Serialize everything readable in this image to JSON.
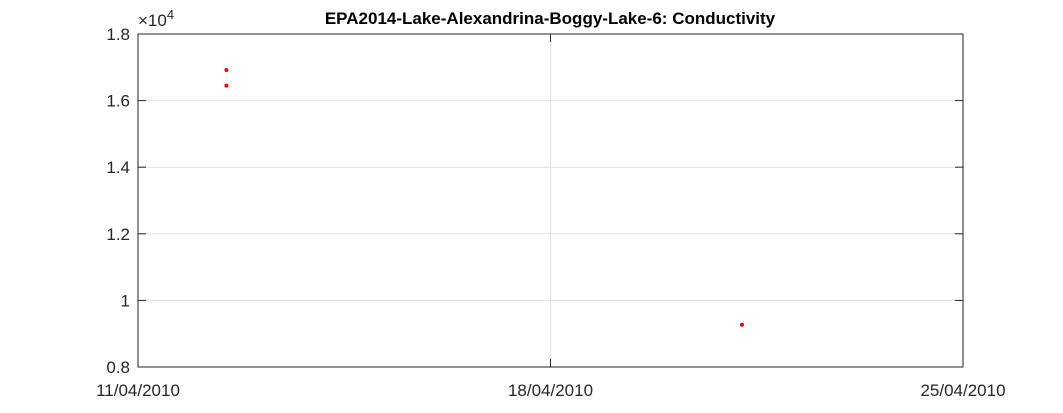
{
  "chart_data": {
    "type": "scatter",
    "title": "EPA2014-Lake-Alexandrina-Boggy-Lake-6: Conductivity",
    "xlabel": "",
    "ylabel": "",
    "x_axis": {
      "type": "date",
      "range": [
        "11/04/2010",
        "25/04/2010"
      ],
      "ticks": [
        "11/04/2010",
        "18/04/2010",
        "25/04/2010"
      ]
    },
    "y_axis": {
      "range": [
        8000,
        18000
      ],
      "ticks": [
        8000,
        10000,
        12000,
        14000,
        16000,
        18000
      ],
      "tick_labels": [
        "0.8",
        "1",
        "1.2",
        "1.4",
        "1.6",
        "1.8"
      ],
      "exponent_label": "×10",
      "exponent_power": "4"
    },
    "grid": true,
    "series": [
      {
        "color": "#ff0000",
        "points": [
          {
            "x": "12/04/2010 12:00",
            "y": 16920
          },
          {
            "x": "12/04/2010 12:00",
            "y": 16450
          },
          {
            "x": "21/04/2010 06:00",
            "y": 9270
          }
        ]
      }
    ]
  }
}
